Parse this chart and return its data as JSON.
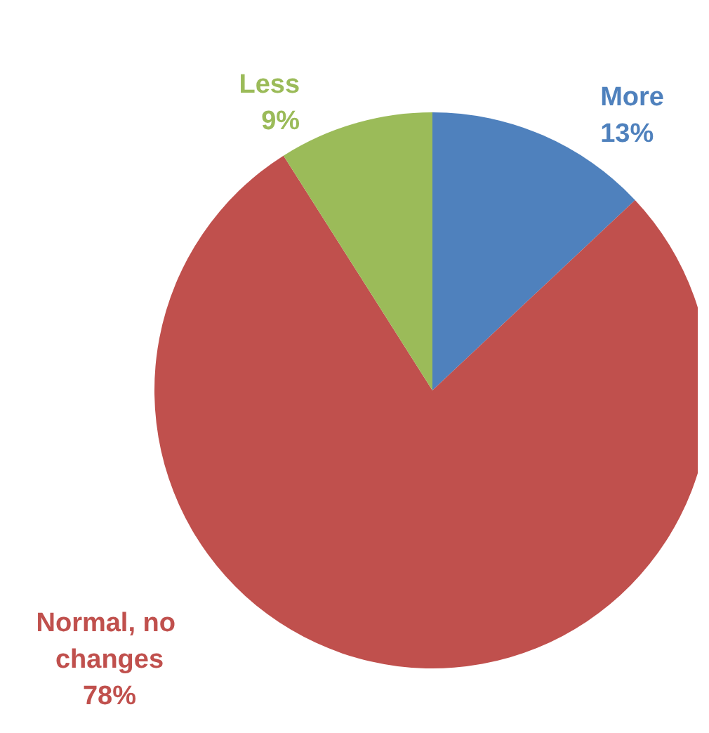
{
  "chart_data": {
    "type": "pie",
    "categories": [
      "More",
      "Normal, no changes",
      "Less"
    ],
    "values": [
      13,
      78,
      9
    ],
    "colors": [
      "#4f81bd",
      "#c0504d",
      "#9bbb59"
    ],
    "value_labels": [
      "13%",
      "78%",
      "9%"
    ]
  }
}
